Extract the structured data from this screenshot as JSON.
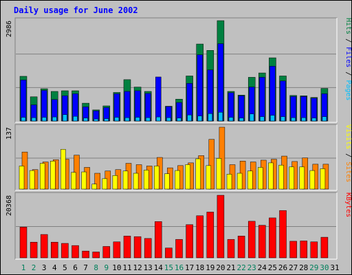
{
  "chart_data": {
    "type": "bar",
    "title": "Daily usage for June 2002",
    "categories": [
      "1",
      "2",
      "3",
      "4",
      "5",
      "6",
      "7",
      "8",
      "9",
      "10",
      "11",
      "12",
      "13",
      "14",
      "15",
      "16",
      "17",
      "18",
      "19",
      "20",
      "21",
      "22",
      "23",
      "24",
      "25",
      "26",
      "27",
      "28",
      "29",
      "30",
      "31"
    ],
    "weekend_days": [
      1,
      2,
      8,
      9,
      15,
      16,
      22,
      23,
      29,
      30
    ],
    "colors": {
      "hits": "#008040",
      "files": "#0000ff",
      "pages": "#00c0ff",
      "visits": "#ffff00",
      "sites": "#ff8000",
      "kbytes": "#ff0000",
      "title": "#0000ff",
      "weekday_label": "#000000",
      "weekend_label": "#00805c"
    },
    "panels": [
      {
        "id": "hits_files_pages",
        "max_label": "2986",
        "ymax": 2986,
        "legend": [
          {
            "text": "Pages",
            "color": "#00c0ff"
          },
          {
            "text": " / ",
            "color": "#000000"
          },
          {
            "text": "Files",
            "color": "#0000ff"
          },
          {
            "text": " / ",
            "color": "#000000"
          },
          {
            "text": "Hits",
            "color": "#008040"
          }
        ],
        "series": [
          {
            "name": "Hits",
            "color": "#008040",
            "values": [
              1330,
              720,
              960,
              880,
              900,
              900,
              530,
              330,
              450,
              850,
              1230,
              1010,
              880,
              0,
              440,
              650,
              1340,
              2290,
              2100,
              2986,
              880,
              770,
              1300,
              1430,
              1880,
              1340,
              760,
              750,
              700,
              970,
              0
            ]
          },
          {
            "name": "Files",
            "color": "#0000ff",
            "values": [
              1220,
              480,
              910,
              640,
              750,
              810,
              420,
              300,
              400,
              810,
              880,
              900,
              820,
              1310,
              430,
              550,
              1120,
              1970,
              1520,
              2300,
              840,
              750,
              1010,
              1300,
              1630,
              1190,
              730,
              730,
              680,
              810,
              0
            ]
          },
          {
            "name": "Pages",
            "color": "#00c0ff",
            "values": [
              110,
              100,
              110,
              120,
              190,
              140,
              90,
              60,
              70,
              110,
              100,
              110,
              100,
              120,
              100,
              90,
              180,
              150,
              220,
              260,
              110,
              90,
              210,
              130,
              170,
              130,
              100,
              100,
              90,
              130,
              0
            ]
          }
        ]
      },
      {
        "id": "visits_sites",
        "max_label": "137",
        "ymax": 137,
        "legend": [
          {
            "text": "Sites",
            "color": "#ff8000"
          },
          {
            "text": " / ",
            "color": "#000000"
          },
          {
            "text": "Visits",
            "color": "#ffff00"
          }
        ],
        "series": [
          {
            "name": "Visits",
            "color": "#ffff00",
            "values": [
              51,
              41,
              57,
              62,
              88,
              37,
              38,
              11,
              23,
              30,
              40,
              35,
              42,
              51,
              34,
              41,
              54,
              67,
              52,
              68,
              33,
              35,
              40,
              48,
              58,
              53,
              49,
              49,
              41,
              45,
              0
            ]
          },
          {
            "name": "Sites",
            "color": "#ff8000",
            "values": [
              82,
              43,
              60,
              65,
              66,
              75,
              48,
              35,
              40,
              43,
              57,
              54,
              51,
              70,
              47,
              52,
              58,
              74,
              110,
              137,
              54,
              62,
              60,
              64,
              66,
              73,
              61,
              69,
              55,
              55,
              0
            ]
          }
        ]
      },
      {
        "id": "kbytes",
        "max_label": "20368",
        "ymax": 20368,
        "legend": [
          {
            "text": "KBytes",
            "color": "#ff0000"
          }
        ],
        "series": [
          {
            "name": "KBytes",
            "color": "#ff0000",
            "values": [
              10000,
              5100,
              7600,
              5100,
              4700,
              4000,
              2200,
              1900,
              3700,
              5200,
              7100,
              6900,
              6300,
              11800,
              3200,
              6000,
              10800,
              13700,
              14900,
              20368,
              6000,
              7100,
              11900,
              10600,
              13000,
              15400,
              5400,
              5500,
              5200,
              6700,
              0
            ]
          }
        ]
      }
    ]
  }
}
